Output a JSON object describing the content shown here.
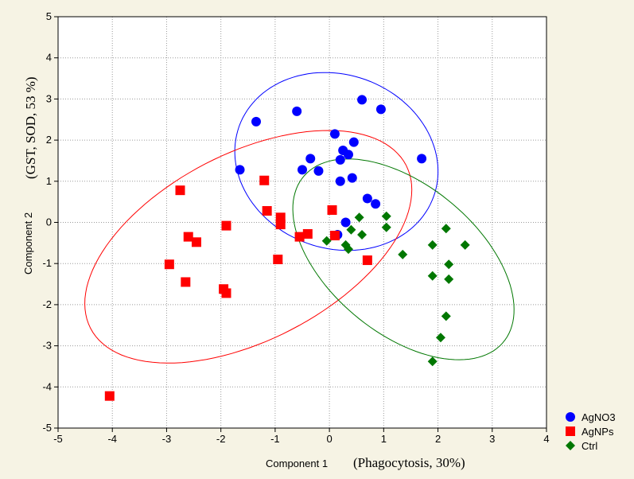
{
  "chart_data": {
    "type": "scatter",
    "title": "",
    "xlabel": "Component 1",
    "xlabel_annotation": "(Phagocytosis, 30%)",
    "ylabel": "Component 2",
    "ylabel_annotation": "(GST, SOD, 53 %)",
    "xlim": [
      -5,
      4
    ],
    "ylim": [
      -5,
      5
    ],
    "xticks": [
      -5,
      -4,
      -3,
      -2,
      -1,
      0,
      1,
      2,
      3,
      4
    ],
    "yticks": [
      -5,
      -4,
      -3,
      -2,
      -1,
      0,
      1,
      2,
      3,
      4,
      5
    ],
    "grid": true,
    "legend": "bottom-right",
    "series": [
      {
        "name": "AgNO3",
        "color": "#0000ff",
        "marker": "circle",
        "points": [
          [
            -1.35,
            2.45
          ],
          [
            -0.6,
            2.7
          ],
          [
            0.6,
            2.98
          ],
          [
            0.95,
            2.75
          ],
          [
            -1.65,
            1.28
          ],
          [
            -0.35,
            1.55
          ],
          [
            -0.5,
            1.28
          ],
          [
            -0.2,
            1.25
          ],
          [
            0.1,
            2.15
          ],
          [
            0.25,
            1.75
          ],
          [
            0.35,
            1.65
          ],
          [
            0.45,
            1.95
          ],
          [
            0.2,
            1.52
          ],
          [
            0.2,
            1.0
          ],
          [
            0.42,
            1.08
          ],
          [
            1.7,
            1.55
          ],
          [
            0.7,
            0.58
          ],
          [
            0.85,
            0.45
          ],
          [
            0.3,
            0.0
          ],
          [
            0.15,
            -0.3
          ]
        ]
      },
      {
        "name": "AgNPs",
        "color": "#ff0000",
        "marker": "square",
        "points": [
          [
            -2.75,
            0.78
          ],
          [
            -1.2,
            1.02
          ],
          [
            -1.15,
            0.28
          ],
          [
            -0.9,
            0.12
          ],
          [
            -0.9,
            -0.05
          ],
          [
            -0.55,
            -0.35
          ],
          [
            -0.4,
            -0.28
          ],
          [
            0.05,
            0.3
          ],
          [
            0.1,
            -0.32
          ],
          [
            0.7,
            -0.92
          ],
          [
            -0.95,
            -0.9
          ],
          [
            -1.9,
            -0.08
          ],
          [
            -2.6,
            -0.35
          ],
          [
            -2.45,
            -0.48
          ],
          [
            -2.95,
            -1.02
          ],
          [
            -2.65,
            -1.45
          ],
          [
            -1.95,
            -1.62
          ],
          [
            -1.9,
            -1.72
          ],
          [
            -4.05,
            -4.22
          ]
        ]
      },
      {
        "name": "Ctrl",
        "color": "#007700",
        "marker": "diamond",
        "points": [
          [
            0.55,
            0.12
          ],
          [
            1.05,
            0.15
          ],
          [
            0.4,
            -0.18
          ],
          [
            0.6,
            -0.3
          ],
          [
            1.05,
            -0.12
          ],
          [
            -0.05,
            -0.45
          ],
          [
            0.3,
            -0.55
          ],
          [
            0.35,
            -0.65
          ],
          [
            1.35,
            -0.78
          ],
          [
            2.15,
            -0.15
          ],
          [
            1.9,
            -0.55
          ],
          [
            2.5,
            -0.55
          ],
          [
            2.2,
            -1.02
          ],
          [
            1.9,
            -1.3
          ],
          [
            2.2,
            -1.38
          ],
          [
            2.15,
            -2.28
          ],
          [
            2.05,
            -2.8
          ],
          [
            1.9,
            -3.38
          ]
        ]
      }
    ]
  }
}
